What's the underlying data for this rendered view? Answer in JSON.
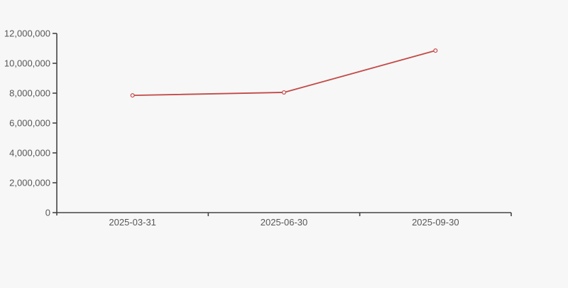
{
  "page": {
    "background_color": "#f7f7f7"
  },
  "chart_data": {
    "type": "line",
    "title": "",
    "xlabel": "",
    "ylabel": "",
    "categories": [
      "2025-03-31",
      "2025-06-30",
      "2025-09-30"
    ],
    "series": [
      {
        "name": "value-series",
        "values": [
          7850000,
          8050000,
          10850000
        ],
        "color": "#c24a47",
        "marker": "open-circle",
        "marker_fill": "#fdfdfd"
      }
    ],
    "ylim": [
      0,
      12000000
    ],
    "y_ticks": [
      0,
      2000000,
      4000000,
      6000000,
      8000000,
      10000000,
      12000000
    ],
    "y_tick_labels": [
      "0",
      "2,000,000",
      "4,000,000",
      "6,000,000",
      "8,000,000",
      "10,000,000",
      "12,000,000"
    ],
    "grid": "off",
    "legend": "none",
    "axis_color": "#454545",
    "tick_label_color": "#575757"
  }
}
